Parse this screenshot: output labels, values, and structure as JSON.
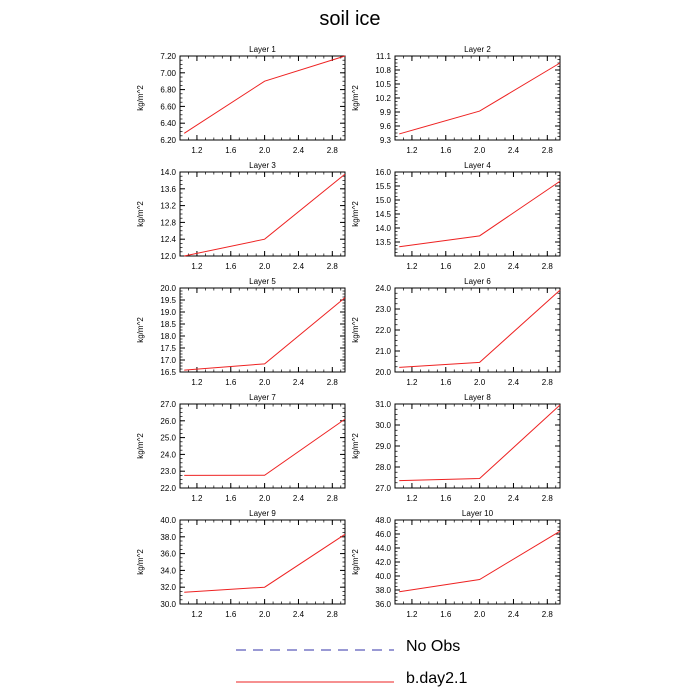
{
  "title": "soil ice",
  "legend": [
    {
      "label": "No Obs",
      "color": "#3333aa",
      "dash": true
    },
    {
      "label": "b.day2.1",
      "color": "#ee2222",
      "dash": false
    }
  ],
  "chart_data": [
    {
      "type": "line",
      "title": "Layer 1",
      "ylabel": "kg/m^2",
      "x": [
        1.05,
        2.0,
        2.95
      ],
      "series": [
        {
          "name": "b.day2.1",
          "values": [
            6.28,
            6.9,
            7.2
          ]
        }
      ],
      "xlim": [
        1.0,
        2.95
      ],
      "ylim": [
        6.2,
        7.2
      ],
      "yticks": [
        "6.20",
        "6.40",
        "6.60",
        "6.80",
        "7.00",
        "7.20"
      ]
    },
    {
      "type": "line",
      "title": "Layer 2",
      "ylabel": "kg/m^2",
      "x": [
        1.05,
        2.0,
        2.95
      ],
      "series": [
        {
          "name": "b.day2.1",
          "values": [
            9.43,
            9.92,
            10.95
          ]
        }
      ],
      "xlim": [
        1.0,
        2.95
      ],
      "ylim": [
        9.3,
        11.1
      ],
      "yticks": [
        "9.3",
        "9.6",
        "9.9",
        "10.2",
        "10.5",
        "10.8",
        "11.1"
      ]
    },
    {
      "type": "line",
      "title": "Layer 3",
      "ylabel": "kg/m^2",
      "x": [
        1.05,
        2.0,
        2.95
      ],
      "series": [
        {
          "name": "b.day2.1",
          "values": [
            12.0,
            12.4,
            13.95
          ]
        }
      ],
      "xlim": [
        1.0,
        2.95
      ],
      "ylim": [
        12.0,
        14.0
      ],
      "yticks": [
        "12.0",
        "12.4",
        "12.8",
        "13.2",
        "13.6",
        "14.0"
      ]
    },
    {
      "type": "line",
      "title": "Layer 4",
      "ylabel": "kg/m^2",
      "x": [
        1.05,
        2.0,
        2.95
      ],
      "series": [
        {
          "name": "b.day2.1",
          "values": [
            13.33,
            13.72,
            15.67
          ]
        }
      ],
      "xlim": [
        1.0,
        2.95
      ],
      "ylim": [
        13.0,
        16.0
      ],
      "yticks": [
        "13.5",
        "14.0",
        "14.5",
        "15.0",
        "15.5",
        "16.0"
      ]
    },
    {
      "type": "line",
      "title": "Layer 5",
      "ylabel": "kg/m^2",
      "x": [
        1.05,
        2.0,
        2.95
      ],
      "series": [
        {
          "name": "b.day2.1",
          "values": [
            16.58,
            16.84,
            19.6
          ]
        }
      ],
      "xlim": [
        1.0,
        2.95
      ],
      "ylim": [
        16.5,
        20.0
      ],
      "yticks": [
        "16.5",
        "17.0",
        "17.5",
        "18.0",
        "18.5",
        "19.0",
        "19.5",
        "20.0"
      ]
    },
    {
      "type": "line",
      "title": "Layer 6",
      "ylabel": "kg/m^2",
      "x": [
        1.05,
        2.0,
        2.95
      ],
      "series": [
        {
          "name": "b.day2.1",
          "values": [
            20.22,
            20.46,
            23.9
          ]
        }
      ],
      "xlim": [
        1.0,
        2.95
      ],
      "ylim": [
        20.0,
        24.0
      ],
      "yticks": [
        "20.0",
        "21.0",
        "22.0",
        "23.0",
        "24.0"
      ]
    },
    {
      "type": "line",
      "title": "Layer 7",
      "ylabel": "kg/m^2",
      "x": [
        1.05,
        2.0,
        2.95
      ],
      "series": [
        {
          "name": "b.day2.1",
          "values": [
            22.75,
            22.76,
            26.1
          ]
        }
      ],
      "xlim": [
        1.0,
        2.95
      ],
      "ylim": [
        22.0,
        27.0
      ],
      "yticks": [
        "22.0",
        "23.0",
        "24.0",
        "25.0",
        "26.0",
        "27.0"
      ]
    },
    {
      "type": "line",
      "title": "Layer 8",
      "ylabel": "kg/m^2",
      "x": [
        1.05,
        2.0,
        2.95
      ],
      "series": [
        {
          "name": "b.day2.1",
          "values": [
            27.35,
            27.45,
            30.95
          ]
        }
      ],
      "xlim": [
        1.0,
        2.95
      ],
      "ylim": [
        27.0,
        31.0
      ],
      "yticks": [
        "27.0",
        "28.0",
        "29.0",
        "30.0",
        "31.0"
      ]
    },
    {
      "type": "line",
      "title": "Layer 9",
      "ylabel": "kg/m^2",
      "x": [
        1.05,
        2.0,
        2.95
      ],
      "series": [
        {
          "name": "b.day2.1",
          "values": [
            31.4,
            32.0,
            38.3
          ]
        }
      ],
      "xlim": [
        1.0,
        2.95
      ],
      "ylim": [
        30.0,
        40.0
      ],
      "yticks": [
        "30.0",
        "32.0",
        "34.0",
        "36.0",
        "38.0",
        "40.0"
      ]
    },
    {
      "type": "line",
      "title": "Layer 10",
      "ylabel": "kg/m^2",
      "x": [
        1.05,
        2.0,
        2.95
      ],
      "series": [
        {
          "name": "b.day2.1",
          "values": [
            37.75,
            39.5,
            46.4
          ]
        }
      ],
      "xlim": [
        1.0,
        2.95
      ],
      "ylim": [
        36.0,
        48.0
      ],
      "yticks": [
        "36.0",
        "38.0",
        "40.0",
        "42.0",
        "44.0",
        "46.0",
        "48.0"
      ]
    }
  ],
  "xticks": [
    "1.2",
    "1.6",
    "2.0",
    "2.4",
    "2.8"
  ],
  "xtick_values": [
    1.2,
    1.6,
    2.0,
    2.4,
    2.8
  ]
}
